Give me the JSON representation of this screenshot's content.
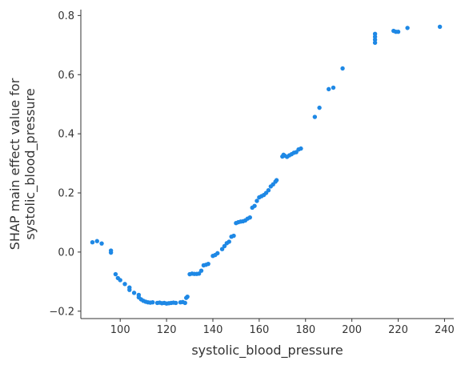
{
  "chart_data": {
    "type": "scatter",
    "xlabel": "systolic_blood_pressure",
    "ylabel_lines": [
      "SHAP main effect value for",
      "systolic_blood_pressure"
    ],
    "xlim": [
      83,
      244
    ],
    "ylim": [
      -0.225,
      0.82
    ],
    "x_ticks": [
      100,
      120,
      140,
      160,
      180,
      200,
      220,
      240
    ],
    "x_tick_labels": [
      "100",
      "120",
      "140",
      "160",
      "180",
      "200",
      "220",
      "240"
    ],
    "y_ticks": [
      -0.2,
      0.0,
      0.2,
      0.4,
      0.6,
      0.8
    ],
    "y_tick_labels": [
      "−0.2",
      "0.0",
      "0.2",
      "0.4",
      "0.6",
      "0.8"
    ],
    "grid": false,
    "point_color": "#1e88e5",
    "points": [
      [
        88,
        0.033
      ],
      [
        90,
        0.037
      ],
      [
        92,
        0.029
      ],
      [
        96,
        0.005
      ],
      [
        96,
        -0.002
      ],
      [
        98,
        -0.075
      ],
      [
        99,
        -0.088
      ],
      [
        100,
        -0.095
      ],
      [
        102,
        -0.108
      ],
      [
        104,
        -0.12
      ],
      [
        104,
        -0.128
      ],
      [
        106,
        -0.138
      ],
      [
        108,
        -0.145
      ],
      [
        108,
        -0.153
      ],
      [
        109,
        -0.16
      ],
      [
        110,
        -0.165
      ],
      [
        111,
        -0.168
      ],
      [
        112,
        -0.17
      ],
      [
        113,
        -0.171
      ],
      [
        114,
        -0.17
      ],
      [
        116,
        -0.172
      ],
      [
        117,
        -0.171
      ],
      [
        118,
        -0.173
      ],
      [
        119,
        -0.172
      ],
      [
        120,
        -0.174
      ],
      [
        121,
        -0.173
      ],
      [
        122,
        -0.172
      ],
      [
        123,
        -0.171
      ],
      [
        124,
        -0.172
      ],
      [
        126,
        -0.17
      ],
      [
        127,
        -0.169
      ],
      [
        128,
        -0.172
      ],
      [
        128.5,
        -0.155
      ],
      [
        129,
        -0.151
      ],
      [
        130,
        -0.075
      ],
      [
        131,
        -0.073
      ],
      [
        132,
        -0.074
      ],
      [
        133,
        -0.074
      ],
      [
        134,
        -0.073
      ],
      [
        135,
        -0.063
      ],
      [
        136,
        -0.045
      ],
      [
        137,
        -0.043
      ],
      [
        138,
        -0.04
      ],
      [
        140,
        -0.013
      ],
      [
        141,
        -0.01
      ],
      [
        142,
        -0.004
      ],
      [
        144,
        0.01
      ],
      [
        145,
        0.02
      ],
      [
        146,
        0.03
      ],
      [
        147,
        0.035
      ],
      [
        148,
        0.052
      ],
      [
        149,
        0.055
      ],
      [
        150,
        0.098
      ],
      [
        151,
        0.101
      ],
      [
        152,
        0.103
      ],
      [
        153,
        0.104
      ],
      [
        154,
        0.107
      ],
      [
        155,
        0.113
      ],
      [
        156,
        0.117
      ],
      [
        157,
        0.15
      ],
      [
        158,
        0.156
      ],
      [
        159,
        0.173
      ],
      [
        160,
        0.185
      ],
      [
        161,
        0.189
      ],
      [
        162,
        0.193
      ],
      [
        163,
        0.2
      ],
      [
        164,
        0.209
      ],
      [
        165,
        0.222
      ],
      [
        166,
        0.229
      ],
      [
        167,
        0.238
      ],
      [
        167.5,
        0.243
      ],
      [
        170,
        0.323
      ],
      [
        170.5,
        0.329
      ],
      [
        171,
        0.326
      ],
      [
        172,
        0.322
      ],
      [
        173,
        0.327
      ],
      [
        174,
        0.331
      ],
      [
        175,
        0.336
      ],
      [
        176,
        0.338
      ],
      [
        177,
        0.347
      ],
      [
        178,
        0.35
      ],
      [
        184,
        0.457
      ],
      [
        186,
        0.488
      ],
      [
        190,
        0.551
      ],
      [
        192,
        0.556
      ],
      [
        196,
        0.621
      ],
      [
        210,
        0.708
      ],
      [
        210,
        0.718
      ],
      [
        210,
        0.728
      ],
      [
        210,
        0.738
      ],
      [
        218,
        0.748
      ],
      [
        219,
        0.745
      ],
      [
        220,
        0.745
      ],
      [
        224,
        0.758
      ],
      [
        238,
        0.762
      ]
    ]
  }
}
